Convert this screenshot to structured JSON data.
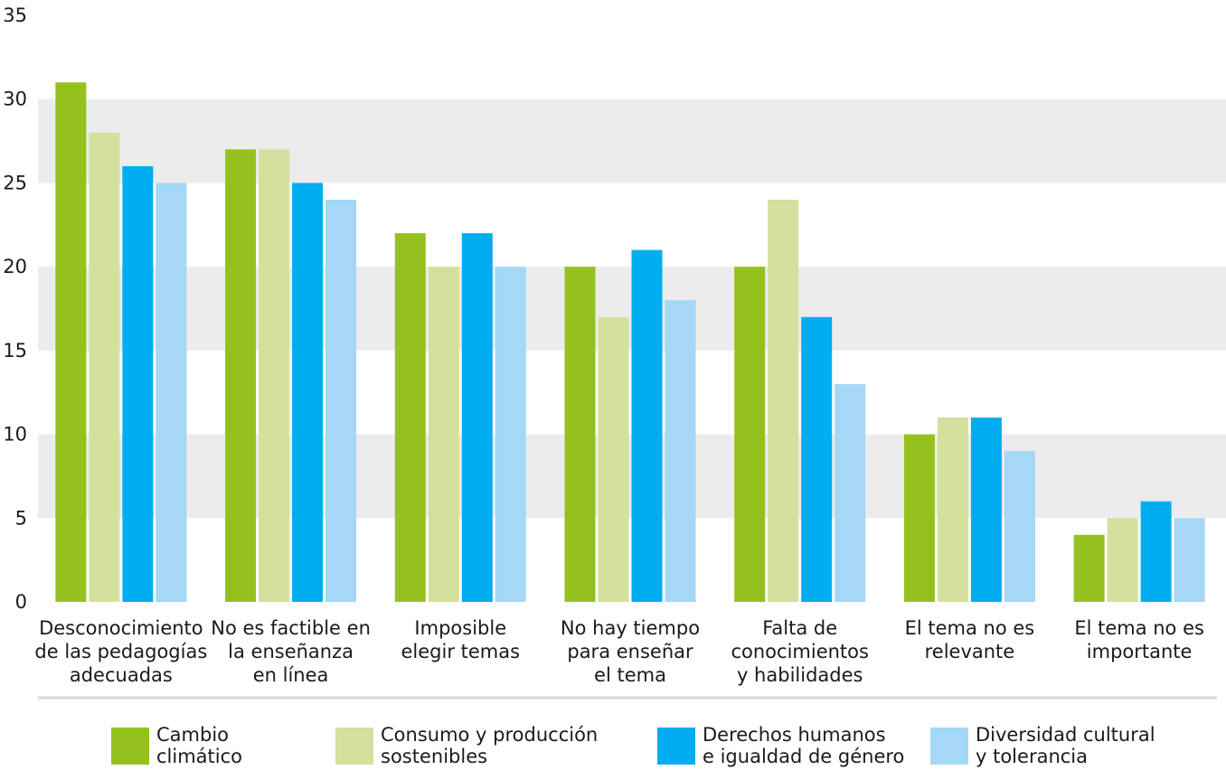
{
  "chart_data": {
    "type": "bar",
    "title": "",
    "xlabel": "",
    "ylabel": "",
    "ylim": [
      0,
      35
    ],
    "yticks": [
      0,
      5,
      10,
      15,
      20,
      25,
      30,
      35
    ],
    "grid": "alternating horizontal bands",
    "legend_position": "bottom",
    "categories": [
      [
        "Desconocimiento",
        "de las pedagogías",
        "adecuadas"
      ],
      [
        "No es factible en",
        "la enseñanza",
        "en línea"
      ],
      [
        "Imposible",
        "elegir temas"
      ],
      [
        "No hay tiempo",
        "para enseñar",
        "el tema"
      ],
      [
        "Falta de",
        "conocimientos",
        "y habilidades"
      ],
      [
        "El tema no es",
        "relevante"
      ],
      [
        "El tema no es",
        "importante"
      ]
    ],
    "series": [
      {
        "name": [
          "Cambio",
          "climático"
        ],
        "color": "#95c11f",
        "values": [
          31,
          27,
          22,
          20,
          20,
          10,
          4
        ]
      },
      {
        "name": [
          "Consumo y producción",
          "sostenibles"
        ],
        "color": "#d3e09e",
        "values": [
          28,
          27,
          20,
          17,
          24,
          11,
          5
        ]
      },
      {
        "name": [
          "Derechos humanos",
          "e igualdad de género"
        ],
        "color": "#00aeef",
        "values": [
          26,
          25,
          22,
          21,
          17,
          11,
          6
        ]
      },
      {
        "name": [
          "Diversidad cultural",
          "y tolerancia"
        ],
        "color": "#a4d8f6",
        "values": [
          25,
          24,
          20,
          18,
          13,
          9,
          5
        ]
      }
    ]
  }
}
